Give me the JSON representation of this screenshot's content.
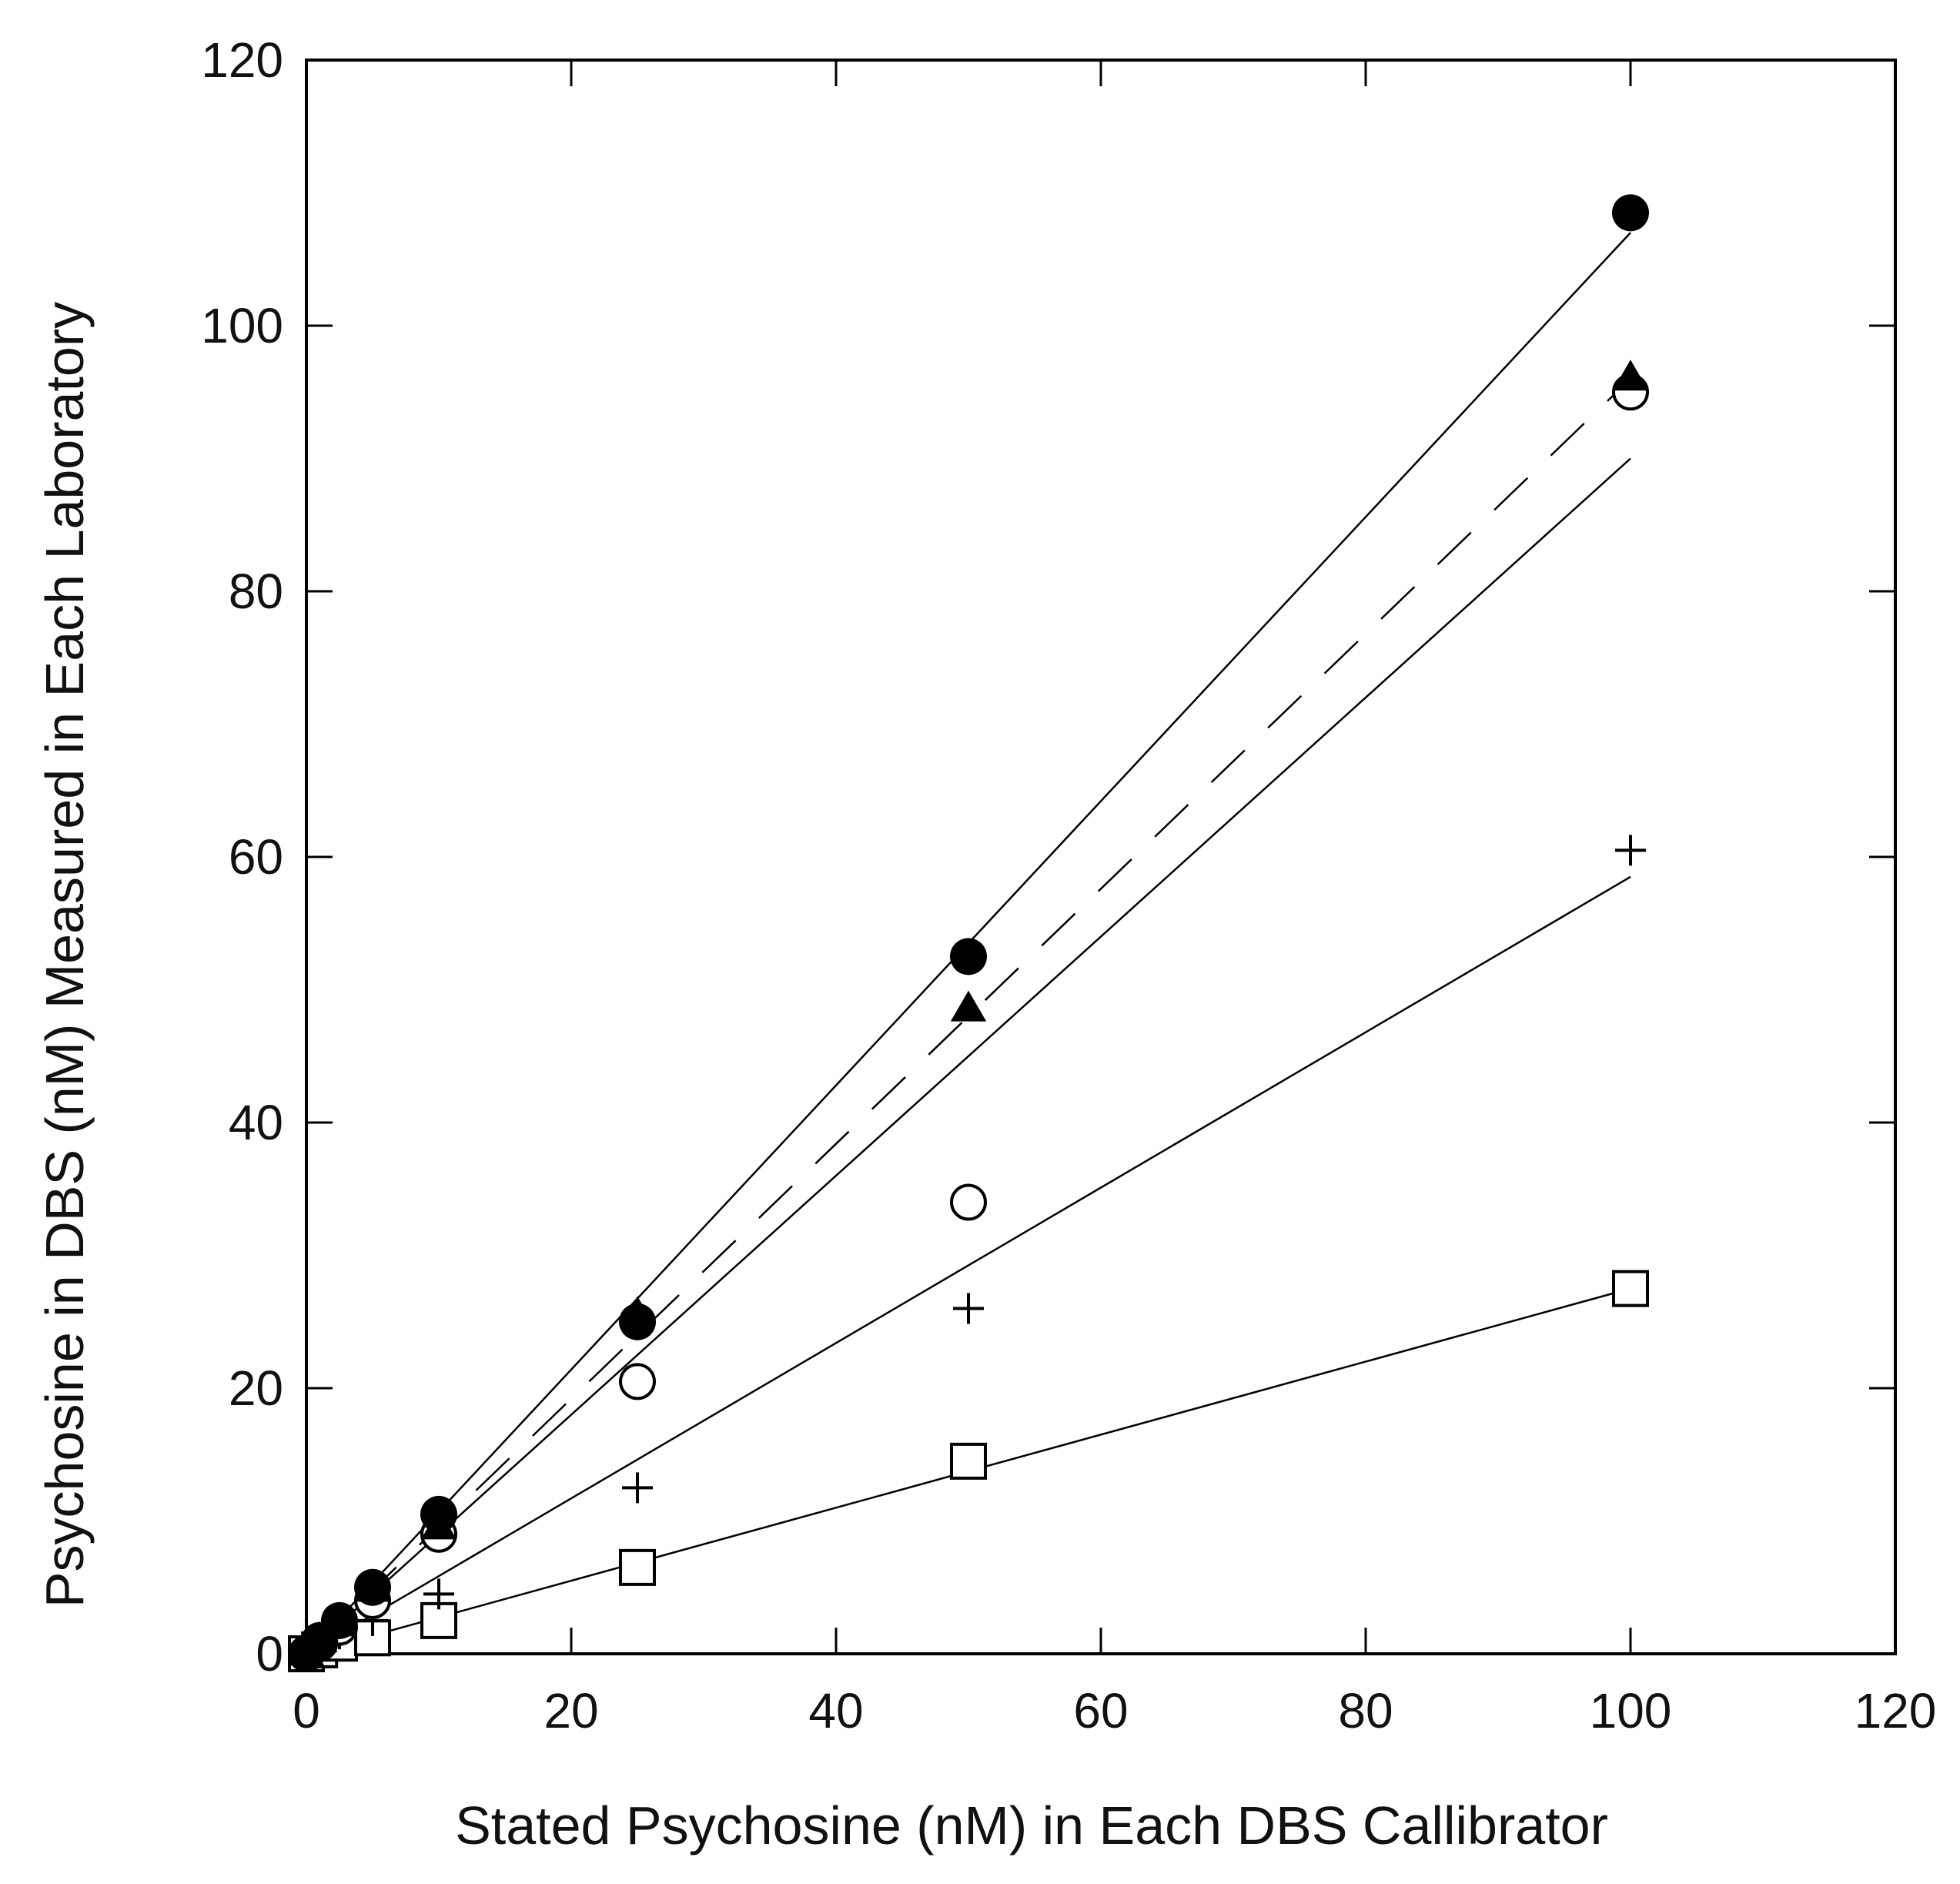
{
  "chart_data": {
    "type": "scatter",
    "title": "",
    "xlabel": "Stated Psychosine (nM) in Each DBS Callibrator",
    "ylabel": "Psychosine in DBS (nM) Measured in Each Laboratory",
    "xlim": [
      0,
      120
    ],
    "ylim": [
      0,
      120
    ],
    "xticks": [
      0,
      20,
      40,
      60,
      80,
      100,
      120
    ],
    "yticks": [
      0,
      20,
      40,
      60,
      80,
      100,
      120
    ],
    "xtick_labels": [
      "0",
      "20",
      "40",
      "60",
      "80",
      "100",
      "120"
    ],
    "ytick_labels": [
      "0",
      "20",
      "40",
      "60",
      "80",
      "100",
      "120"
    ],
    "grid": false,
    "series": [
      {
        "name": "filled-circle",
        "marker": "filled-circle",
        "x": [
          0,
          1,
          2.5,
          5,
          10,
          25,
          50,
          100
        ],
        "y": [
          0,
          1,
          2.5,
          5,
          10.5,
          25,
          52.5,
          108.5
        ],
        "fit": {
          "style": "solid",
          "slope": 1.07,
          "intercept": 0
        }
      },
      {
        "name": "filled-triangle",
        "marker": "filled-triangle",
        "x": [
          0,
          1,
          2.5,
          5,
          10,
          25,
          50,
          100
        ],
        "y": [
          0,
          1,
          2.2,
          4.8,
          9.5,
          25.5,
          48.5,
          96
        ],
        "fit": {
          "style": "dashed",
          "slope": 0.96,
          "intercept": 0
        }
      },
      {
        "name": "open-circle",
        "marker": "open-circle",
        "x": [
          0,
          1,
          2.5,
          5,
          10,
          25,
          50,
          100
        ],
        "y": [
          0,
          0.8,
          2,
          4,
          9,
          20.5,
          34,
          95
        ],
        "fit": {
          "style": "solid",
          "slope": 0.9,
          "intercept": 0
        }
      },
      {
        "name": "plus",
        "marker": "plus",
        "x": [
          0,
          1,
          2.5,
          5,
          10,
          25,
          50,
          100
        ],
        "y": [
          0,
          0.6,
          1.5,
          2.5,
          4.5,
          12.5,
          26,
          60.5
        ],
        "fit": {
          "style": "solid",
          "slope": 0.585,
          "intercept": 0
        }
      },
      {
        "name": "open-square",
        "marker": "open-square",
        "x": [
          0,
          1,
          2.5,
          5,
          10,
          25,
          50,
          100
        ],
        "y": [
          0,
          0.3,
          0.8,
          1.2,
          2.5,
          6.5,
          14.5,
          27.5
        ],
        "fit": {
          "style": "solid",
          "slope": 0.275,
          "intercept": 0
        }
      }
    ]
  }
}
